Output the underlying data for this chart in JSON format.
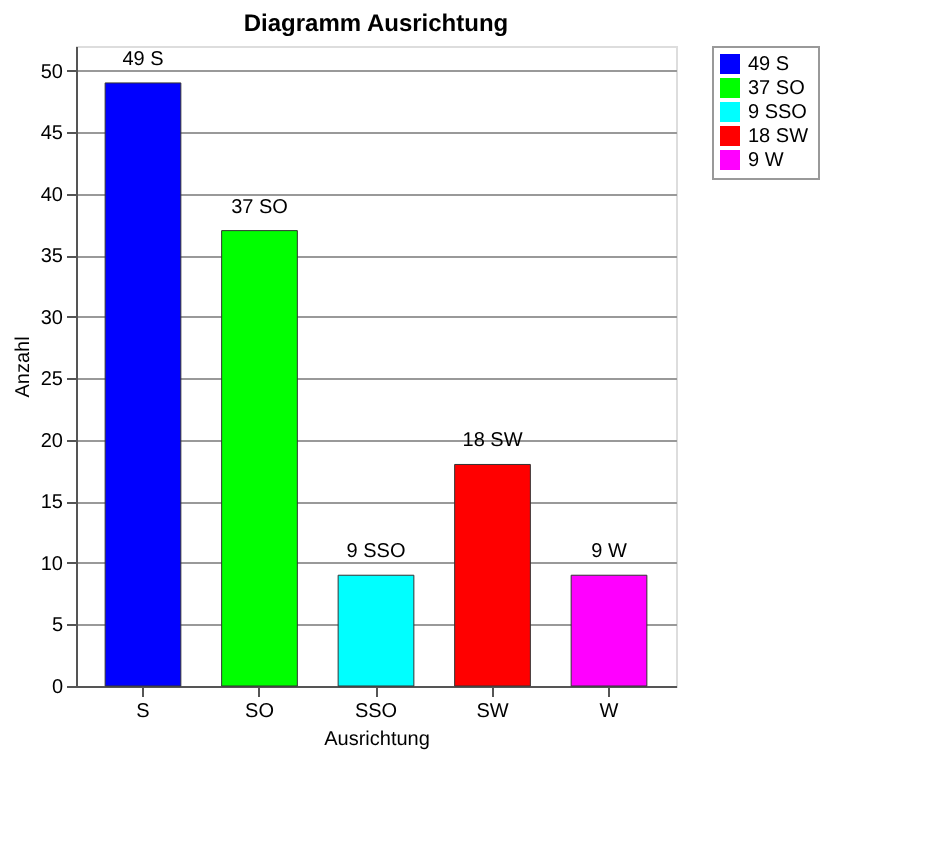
{
  "chart_data": {
    "type": "bar",
    "title": "Diagramm Ausrichtung",
    "xlabel": "Ausrichtung",
    "ylabel": "Anzahl",
    "categories": [
      "S",
      "SO",
      "SSO",
      "SW",
      "W"
    ],
    "series": [
      {
        "name": "49 S",
        "color": "#0000ff",
        "values": [
          49,
          null,
          null,
          null,
          null
        ],
        "value_labels": [
          "49 S",
          null,
          null,
          null,
          null
        ]
      },
      {
        "name": "37 SO",
        "color": "#00ff00",
        "values": [
          null,
          37,
          null,
          null,
          null
        ],
        "value_labels": [
          null,
          "37 SO",
          null,
          null,
          null
        ]
      },
      {
        "name": "9 SSO",
        "color": "#00ffff",
        "values": [
          null,
          null,
          9,
          null,
          null
        ],
        "value_labels": [
          null,
          null,
          "9 SSO",
          null,
          null
        ]
      },
      {
        "name": "18 SW",
        "color": "#ff0000",
        "values": [
          null,
          null,
          null,
          18,
          null
        ],
        "value_labels": [
          null,
          null,
          null,
          "18 SW",
          null
        ]
      },
      {
        "name": "9 W",
        "color": "#ff00ff",
        "values": [
          null,
          null,
          null,
          null,
          9
        ],
        "value_labels": [
          null,
          null,
          null,
          null,
          "9 W"
        ]
      }
    ],
    "ylim": [
      0,
      52
    ],
    "yticks": [
      0,
      5,
      10,
      15,
      20,
      25,
      30,
      35,
      40,
      45,
      50
    ],
    "grid": "y",
    "legend": "top right"
  }
}
